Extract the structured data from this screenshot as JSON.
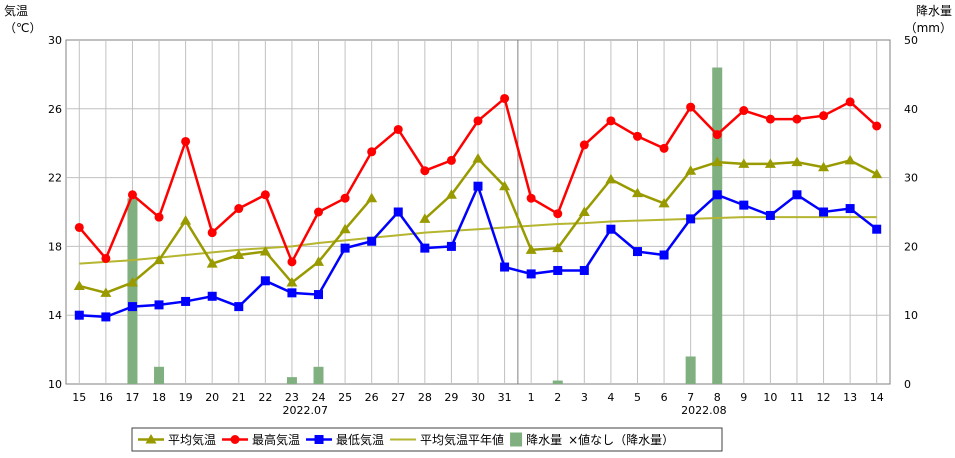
{
  "chart_data": {
    "type": "line",
    "categories": [
      "15",
      "16",
      "17",
      "18",
      "19",
      "20",
      "21",
      "22",
      "23",
      "24",
      "25",
      "26",
      "27",
      "28",
      "29",
      "30",
      "31",
      "1",
      "2",
      "3",
      "4",
      "5",
      "6",
      "7",
      "8",
      "9",
      "10",
      "11",
      "12",
      "13",
      "14"
    ],
    "month_labels": [
      {
        "text": "2022.07",
        "index": 8.5
      },
      {
        "text": "2022.08",
        "index": 23.5
      }
    ],
    "left_axis": {
      "title_line1": "気温",
      "title_line2": "（℃）",
      "min": 10,
      "max": 30,
      "ticks": [
        "10",
        "14",
        "18",
        "22",
        "26",
        "30"
      ]
    },
    "right_axis": {
      "title_line1": "降水量",
      "title_line2": "（mm）",
      "min": 0,
      "max": 50,
      "ticks": [
        "0",
        "10",
        "20",
        "30",
        "40",
        "50"
      ]
    },
    "grid": true,
    "legend_position": "bottom",
    "colors": {
      "avg": "#999900",
      "max": "#ff0000",
      "min": "#0000ff",
      "normal": "#b5b530",
      "precip": "#80b080",
      "grid": "#c0c0c0"
    },
    "series": [
      {
        "name": "平均気温",
        "key": "avg",
        "marker": "triangle",
        "values": [
          15.7,
          15.3,
          15.9,
          17.2,
          19.5,
          17.0,
          17.5,
          17.7,
          15.9,
          17.1,
          19.0,
          20.8,
          null,
          19.6,
          21.0,
          23.1,
          21.5,
          17.8,
          17.9,
          20.0,
          21.9,
          21.1,
          20.5,
          22.4,
          22.9,
          22.8,
          22.8,
          22.9,
          22.6,
          23.0,
          22.2
        ]
      },
      {
        "name": "最高気温",
        "key": "max",
        "marker": "circle",
        "values": [
          19.1,
          17.3,
          21.0,
          19.7,
          24.1,
          18.8,
          20.2,
          21.0,
          17.1,
          20.0,
          20.8,
          23.5,
          24.8,
          22.4,
          23.0,
          25.3,
          26.6,
          20.8,
          19.9,
          23.9,
          25.3,
          24.4,
          23.7,
          26.1,
          24.5,
          25.9,
          25.4,
          25.4,
          25.6,
          26.4,
          25.0
        ]
      },
      {
        "name": "最低気温",
        "key": "min",
        "marker": "square",
        "values": [
          14.0,
          13.9,
          14.5,
          14.6,
          14.8,
          15.1,
          14.5,
          16.0,
          15.3,
          15.2,
          17.9,
          18.3,
          20.0,
          17.9,
          18.0,
          21.5,
          16.8,
          16.4,
          16.6,
          16.6,
          19.0,
          17.7,
          17.5,
          19.6,
          21.0,
          20.4,
          19.8,
          21.0,
          20.0,
          20.2,
          19.0
        ]
      },
      {
        "name": "平均気温平年値",
        "key": "normal",
        "marker": "none",
        "values": [
          17.0,
          17.1,
          17.2,
          17.35,
          17.5,
          17.65,
          17.8,
          17.9,
          18.0,
          18.2,
          18.35,
          18.5,
          18.65,
          18.8,
          18.9,
          19.0,
          19.1,
          19.2,
          19.3,
          19.35,
          19.45,
          19.5,
          19.55,
          19.6,
          19.65,
          19.7,
          19.7,
          19.7,
          19.7,
          19.7,
          19.7
        ]
      },
      {
        "name": "降水量",
        "key": "precip",
        "marker": "bar",
        "values": [
          0,
          0,
          27,
          2.5,
          0,
          0,
          0,
          0,
          1,
          2.5,
          0,
          0,
          0,
          0,
          0,
          0,
          0,
          0,
          0.5,
          0,
          0,
          0,
          0,
          4,
          46,
          0,
          0,
          0,
          0,
          0,
          0
        ]
      }
    ],
    "legend_items": [
      {
        "label": "平均気温",
        "key": "avg",
        "marker": "triangle"
      },
      {
        "label": "最高気温",
        "key": "max",
        "marker": "circle"
      },
      {
        "label": "最低気温",
        "key": "min",
        "marker": "square"
      },
      {
        "label": "平均気温平年値",
        "key": "normal",
        "marker": "none"
      },
      {
        "label": "降水量",
        "key": "precip",
        "marker": "bar"
      }
    ],
    "legend_note": "×値なし（降水量）"
  }
}
